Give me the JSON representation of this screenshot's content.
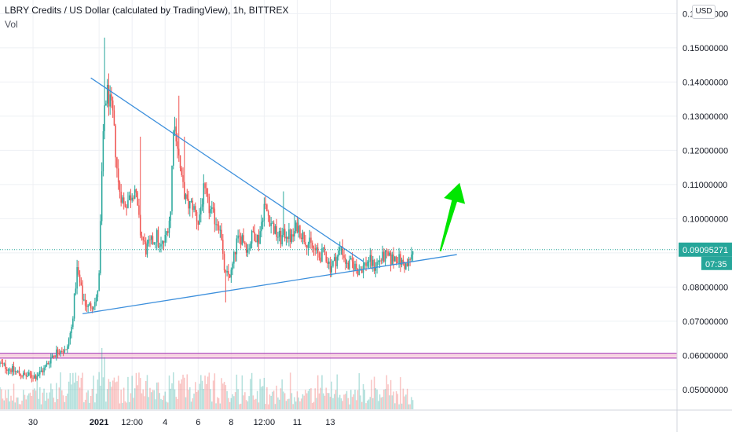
{
  "header": {
    "title": "LBRY Credits / US Dollar (calculated by TradingView), 1h, BITTREX",
    "volume_label": "Vol"
  },
  "currency_button": "USD",
  "colors": {
    "up": "#26a69a",
    "down": "#ef5350",
    "trendline": "#3c8fdc",
    "support_band_line": "#9c27b0",
    "support_band_fill": "#f8bbd0",
    "arrow": "#00e600",
    "price_marker": "#26a69a",
    "grid": "#eef0f4"
  },
  "chart_data": {
    "type": "candlestick",
    "symbol": "LBRY Credits / US Dollar",
    "interval": "1h",
    "exchange": "BITTREX",
    "y_axis": {
      "ylim": [
        0.044,
        0.164
      ],
      "ticks": [
        "0.05000000",
        "0.06000000",
        "0.07000000",
        "0.08000000",
        "0.09000000",
        "0.10000000",
        "0.11000000",
        "0.12000000",
        "0.13000000",
        "0.14000000",
        "0.15000000",
        "0.16000000"
      ],
      "tick_values": [
        0.05,
        0.06,
        0.07,
        0.08,
        0.09,
        0.1,
        0.11,
        0.12,
        0.13,
        0.14,
        0.15,
        0.16
      ]
    },
    "x_axis": {
      "range_hours": [
        -36,
        210
      ],
      "ticks": [
        {
          "label": "30",
          "hour": -24
        },
        {
          "label": "2021",
          "hour": 0
        },
        {
          "label": "12:00",
          "hour": 12
        },
        {
          "label": "4",
          "hour": 24
        },
        {
          "label": "6",
          "hour": 36
        },
        {
          "label": "8",
          "hour": 48
        },
        {
          "label": "12:00",
          "hour": 60
        },
        {
          "label": "11",
          "hour": 72
        },
        {
          "label": "13",
          "hour": 84
        }
      ]
    },
    "last_price": {
      "value": 0.09095271,
      "label": "0.09095271",
      "countdown": "07:35"
    },
    "anchors": [
      [
        -36,
        0.0575
      ],
      [
        -31,
        0.0555
      ],
      [
        -27,
        0.054
      ],
      [
        -23,
        0.054
      ],
      [
        -20,
        0.056
      ],
      [
        -17,
        0.06
      ],
      [
        -14,
        0.062
      ],
      [
        -12,
        0.061
      ],
      [
        -10,
        0.068
      ],
      [
        -8,
        0.085
      ],
      [
        -6,
        0.077
      ],
      [
        -4,
        0.074
      ],
      [
        -1,
        0.076
      ],
      [
        0,
        0.083
      ],
      [
        1,
        0.113
      ],
      [
        2,
        0.133
      ],
      [
        3,
        0.137
      ],
      [
        5,
        0.13
      ],
      [
        7,
        0.11
      ],
      [
        9,
        0.104
      ],
      [
        11,
        0.106
      ],
      [
        13,
        0.109
      ],
      [
        15,
        0.096
      ],
      [
        17,
        0.091
      ],
      [
        19,
        0.093
      ],
      [
        21,
        0.095
      ],
      [
        22,
        0.091
      ],
      [
        24,
        0.094
      ],
      [
        26,
        0.102
      ],
      [
        27,
        0.128
      ],
      [
        28,
        0.125
      ],
      [
        30,
        0.111
      ],
      [
        32,
        0.104
      ],
      [
        34,
        0.104
      ],
      [
        36,
        0.099
      ],
      [
        38,
        0.108
      ],
      [
        40,
        0.103
      ],
      [
        42,
        0.1
      ],
      [
        44,
        0.098
      ],
      [
        45,
        0.088
      ],
      [
        46,
        0.083
      ],
      [
        48,
        0.084
      ],
      [
        50,
        0.093
      ],
      [
        52,
        0.095
      ],
      [
        54,
        0.091
      ],
      [
        56,
        0.096
      ],
      [
        58,
        0.094
      ],
      [
        60,
        0.104
      ],
      [
        62,
        0.1
      ],
      [
        64,
        0.096
      ],
      [
        66,
        0.094
      ],
      [
        68,
        0.096
      ],
      [
        70,
        0.094
      ],
      [
        72,
        0.098
      ],
      [
        74,
        0.095
      ],
      [
        76,
        0.093
      ],
      [
        78,
        0.091
      ],
      [
        80,
        0.089
      ],
      [
        82,
        0.09
      ],
      [
        84,
        0.086
      ],
      [
        86,
        0.088
      ],
      [
        88,
        0.092
      ],
      [
        90,
        0.086
      ],
      [
        92,
        0.087
      ],
      [
        94,
        0.085
      ],
      [
        96,
        0.086
      ],
      [
        98,
        0.088
      ],
      [
        100,
        0.086
      ],
      [
        102,
        0.088
      ],
      [
        104,
        0.089
      ],
      [
        106,
        0.088
      ],
      [
        108,
        0.089
      ],
      [
        110,
        0.087
      ],
      [
        112,
        0.086
      ],
      [
        114,
        0.09
      ]
    ],
    "spikes": [
      {
        "hour": 2,
        "high": 0.153
      },
      {
        "hour": 15,
        "high": 0.124
      },
      {
        "hour": 29,
        "high": 0.136
      },
      {
        "hour": 31,
        "high": 0.124
      },
      {
        "hour": 46,
        "low": 0.0755
      },
      {
        "hour": 67,
        "high": 0.108
      },
      {
        "hour": 71,
        "high": 0.101
      }
    ],
    "volume_spikes": [
      {
        "hour": 1,
        "value": 1.0
      },
      {
        "hour": 2,
        "value": 0.85
      },
      {
        "hour": 4,
        "value": 0.45
      }
    ],
    "annotations": {
      "descending_trendline": [
        [
          -3,
          0.1412
        ],
        [
          96,
          0.0875
        ]
      ],
      "ascending_trendline": [
        [
          -6,
          0.0722
        ],
        [
          130,
          0.0895
        ]
      ],
      "support_band": [
        0.0592,
        0.0606
      ],
      "arrow": {
        "from": [
          124,
          0.0905
        ],
        "to": [
          131,
          0.1105
        ]
      }
    },
    "grid": true
  }
}
